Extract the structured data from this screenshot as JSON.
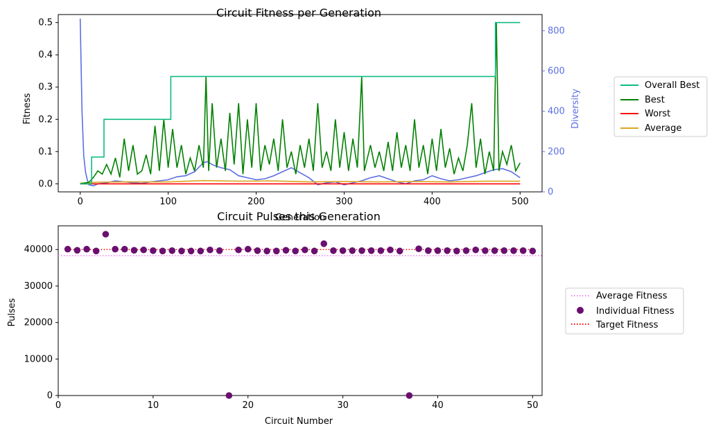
{
  "chart_data": [
    {
      "type": "line",
      "title": "Circuit Fitness per Generation",
      "xlabel": "Generation",
      "ylabel": "Fitness",
      "y2label": "Diversity",
      "xlim": [
        -25,
        525
      ],
      "ylim": [
        -0.025,
        0.525
      ],
      "y2lim": [
        0,
        880
      ],
      "xticks": [
        0,
        100,
        200,
        300,
        400,
        500
      ],
      "yticks": [
        0.0,
        0.1,
        0.2,
        0.3,
        0.4,
        0.5
      ],
      "y2ticks": [
        0,
        200,
        400,
        600,
        800
      ],
      "legend_position": "outside-right",
      "series": [
        {
          "name": "Overall Best",
          "color": "#10b981",
          "points": [
            [
              0,
              0
            ],
            [
              13,
              0
            ],
            [
              13,
              0.083
            ],
            [
              27,
              0.083
            ],
            [
              27,
              0.2
            ],
            [
              103,
              0.2
            ],
            [
              103,
              0.333
            ],
            [
              472,
              0.333
            ],
            [
              472,
              0.5
            ],
            [
              500,
              0.5
            ]
          ]
        },
        {
          "name": "Best",
          "color": "#008000",
          "points": [
            [
              0,
              0.0
            ],
            [
              10,
              0.005
            ],
            [
              15,
              0.02
            ],
            [
              20,
              0.04
            ],
            [
              25,
              0.03
            ],
            [
              30,
              0.06
            ],
            [
              35,
              0.03
            ],
            [
              40,
              0.08
            ],
            [
              45,
              0.02
            ],
            [
              50,
              0.14
            ],
            [
              55,
              0.04
            ],
            [
              60,
              0.12
            ],
            [
              65,
              0.03
            ],
            [
              70,
              0.04
            ],
            [
              75,
              0.09
            ],
            [
              80,
              0.03
            ],
            [
              85,
              0.18
            ],
            [
              90,
              0.04
            ],
            [
              95,
              0.2
            ],
            [
              100,
              0.05
            ],
            [
              105,
              0.17
            ],
            [
              110,
              0.05
            ],
            [
              115,
              0.12
            ],
            [
              120,
              0.03
            ],
            [
              125,
              0.08
            ],
            [
              130,
              0.04
            ],
            [
              135,
              0.12
            ],
            [
              140,
              0.05
            ],
            [
              143,
              0.333
            ],
            [
              146,
              0.04
            ],
            [
              150,
              0.25
            ],
            [
              155,
              0.05
            ],
            [
              160,
              0.14
            ],
            [
              165,
              0.04
            ],
            [
              170,
              0.22
            ],
            [
              175,
              0.06
            ],
            [
              180,
              0.25
            ],
            [
              185,
              0.03
            ],
            [
              190,
              0.2
            ],
            [
              195,
              0.05
            ],
            [
              200,
              0.25
            ],
            [
              205,
              0.04
            ],
            [
              210,
              0.12
            ],
            [
              215,
              0.06
            ],
            [
              220,
              0.14
            ],
            [
              225,
              0.04
            ],
            [
              230,
              0.2
            ],
            [
              235,
              0.05
            ],
            [
              240,
              0.1
            ],
            [
              245,
              0.03
            ],
            [
              250,
              0.12
            ],
            [
              255,
              0.05
            ],
            [
              260,
              0.14
            ],
            [
              265,
              0.04
            ],
            [
              270,
              0.25
            ],
            [
              275,
              0.05
            ],
            [
              280,
              0.1
            ],
            [
              285,
              0.04
            ],
            [
              290,
              0.2
            ],
            [
              295,
              0.05
            ],
            [
              300,
              0.16
            ],
            [
              305,
              0.04
            ],
            [
              310,
              0.14
            ],
            [
              315,
              0.05
            ],
            [
              320,
              0.333
            ],
            [
              323,
              0.04
            ],
            [
              330,
              0.12
            ],
            [
              335,
              0.05
            ],
            [
              340,
              0.1
            ],
            [
              345,
              0.04
            ],
            [
              350,
              0.13
            ],
            [
              355,
              0.04
            ],
            [
              360,
              0.16
            ],
            [
              365,
              0.05
            ],
            [
              370,
              0.12
            ],
            [
              375,
              0.04
            ],
            [
              380,
              0.2
            ],
            [
              385,
              0.05
            ],
            [
              390,
              0.12
            ],
            [
              395,
              0.03
            ],
            [
              400,
              0.14
            ],
            [
              405,
              0.04
            ],
            [
              410,
              0.17
            ],
            [
              415,
              0.05
            ],
            [
              420,
              0.11
            ],
            [
              425,
              0.03
            ],
            [
              430,
              0.08
            ],
            [
              435,
              0.04
            ],
            [
              440,
              0.12
            ],
            [
              445,
              0.25
            ],
            [
              450,
              0.05
            ],
            [
              455,
              0.14
            ],
            [
              460,
              0.03
            ],
            [
              465,
              0.1
            ],
            [
              470,
              0.04
            ],
            [
              473,
              0.5
            ],
            [
              476,
              0.04
            ],
            [
              480,
              0.1
            ],
            [
              485,
              0.06
            ],
            [
              490,
              0.12
            ],
            [
              495,
              0.04
            ],
            [
              500,
              0.065
            ]
          ]
        },
        {
          "name": "Worst",
          "color": "#ff0000",
          "points": [
            [
              0,
              0
            ],
            [
              100,
              0
            ],
            [
              200,
              0
            ],
            [
              300,
              0
            ],
            [
              400,
              0
            ],
            [
              500,
              0
            ]
          ]
        },
        {
          "name": "Average",
          "color": "#daa520",
          "points": [
            [
              0,
              0.002
            ],
            [
              20,
              0.005
            ],
            [
              50,
              0.006
            ],
            [
              80,
              0.006
            ],
            [
              100,
              0.006
            ],
            [
              140,
              0.01
            ],
            [
              180,
              0.008
            ],
            [
              220,
              0.009
            ],
            [
              260,
              0.006
            ],
            [
              300,
              0.007
            ],
            [
              340,
              0.006
            ],
            [
              380,
              0.007
            ],
            [
              420,
              0.006
            ],
            [
              460,
              0.008
            ],
            [
              500,
              0.008
            ]
          ]
        }
      ],
      "diversity_series": {
        "name": "Diversity",
        "color": "#5b6ee1",
        "points": [
          [
            0,
            860
          ],
          [
            2,
            400
          ],
          [
            4,
            180
          ],
          [
            6,
            100
          ],
          [
            8,
            60
          ],
          [
            10,
            35
          ],
          [
            15,
            30
          ],
          [
            20,
            40
          ],
          [
            30,
            45
          ],
          [
            40,
            55
          ],
          [
            50,
            50
          ],
          [
            60,
            45
          ],
          [
            70,
            42
          ],
          [
            80,
            50
          ],
          [
            90,
            55
          ],
          [
            100,
            60
          ],
          [
            110,
            75
          ],
          [
            120,
            80
          ],
          [
            130,
            100
          ],
          [
            140,
            145
          ],
          [
            145,
            150
          ],
          [
            150,
            135
          ],
          [
            160,
            120
          ],
          [
            170,
            110
          ],
          [
            180,
            80
          ],
          [
            190,
            70
          ],
          [
            200,
            60
          ],
          [
            210,
            65
          ],
          [
            220,
            80
          ],
          [
            230,
            100
          ],
          [
            240,
            120
          ],
          [
            250,
            95
          ],
          [
            260,
            70
          ],
          [
            270,
            35
          ],
          [
            280,
            45
          ],
          [
            290,
            50
          ],
          [
            300,
            35
          ],
          [
            310,
            45
          ],
          [
            320,
            55
          ],
          [
            330,
            70
          ],
          [
            340,
            80
          ],
          [
            350,
            65
          ],
          [
            360,
            50
          ],
          [
            370,
            40
          ],
          [
            380,
            55
          ],
          [
            390,
            60
          ],
          [
            400,
            80
          ],
          [
            410,
            65
          ],
          [
            420,
            55
          ],
          [
            430,
            60
          ],
          [
            440,
            70
          ],
          [
            450,
            80
          ],
          [
            460,
            95
          ],
          [
            470,
            110
          ],
          [
            480,
            115
          ],
          [
            490,
            100
          ],
          [
            500,
            70
          ]
        ]
      }
    },
    {
      "type": "scatter",
      "title": "Circuit Pulses this Generation",
      "xlabel": "Circuit Number",
      "ylabel": "Pulses",
      "xlim": [
        0,
        51
      ],
      "ylim": [
        0,
        46500
      ],
      "xticks": [
        0,
        10,
        20,
        30,
        40,
        50
      ],
      "yticks": [
        0,
        10000,
        20000,
        30000,
        40000
      ],
      "legend_position": "outside-right",
      "average_fitness": {
        "name": "Average Fitness",
        "color": "#ee82ee",
        "value": 38300
      },
      "target_fitness": {
        "name": "Target Fitness",
        "color": "#ff0000",
        "value": 40000
      },
      "individual": {
        "name": "Individual Fitness",
        "color": "#6a0f70",
        "x": [
          1,
          2,
          3,
          4,
          5,
          6,
          7,
          8,
          9,
          10,
          11,
          12,
          13,
          14,
          15,
          16,
          17,
          18,
          19,
          20,
          21,
          22,
          23,
          24,
          25,
          26,
          27,
          28,
          29,
          30,
          31,
          32,
          33,
          34,
          35,
          36,
          37,
          38,
          39,
          40,
          41,
          42,
          43,
          44,
          45,
          46,
          47,
          48,
          49,
          50
        ],
        "y": [
          40100,
          39800,
          40100,
          39600,
          44200,
          40100,
          40100,
          39800,
          39900,
          39700,
          39600,
          39700,
          39600,
          39600,
          39600,
          39900,
          39700,
          0,
          39900,
          40100,
          39700,
          39600,
          39600,
          39800,
          39600,
          39900,
          39600,
          41600,
          39700,
          39700,
          39700,
          39700,
          39700,
          39700,
          39900,
          39600,
          0,
          40200,
          39700,
          39700,
          39700,
          39600,
          39700,
          39900,
          39700,
          39700,
          39700,
          39700,
          39700,
          39600
        ]
      }
    }
  ]
}
